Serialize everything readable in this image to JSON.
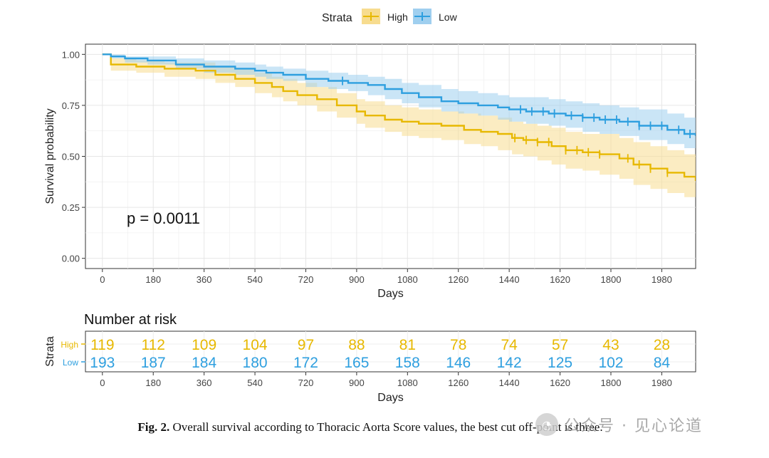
{
  "chart_data": {
    "type": "line",
    "subtype": "kaplan-meier",
    "legend": {
      "title": "Strata",
      "position": "top",
      "entries": [
        "High",
        "Low"
      ]
    },
    "colors": {
      "High": "#E7B800",
      "Low": "#2E9FDF",
      "High_band": "#F7DC8F",
      "Low_band": "#9FCFEF"
    },
    "xlabel": "Days",
    "ylabel": "Survival probability",
    "xlim": [
      -60,
      2100
    ],
    "ylim": [
      0,
      1
    ],
    "xticks": [
      0,
      180,
      360,
      540,
      720,
      900,
      1080,
      1260,
      1440,
      1620,
      1800,
      1980
    ],
    "yticks": [
      0,
      0.25,
      0.5,
      0.75,
      1.0
    ],
    "ytick_labels": [
      "0.00",
      "0.25",
      "0.50",
      "0.75",
      "1.00"
    ],
    "pvalue_label": "p = 0.0011",
    "series": [
      {
        "name": "High",
        "x": [
          0,
          30,
          120,
          220,
          330,
          400,
          470,
          540,
          600,
          640,
          690,
          760,
          830,
          900,
          930,
          1000,
          1060,
          1120,
          1200,
          1280,
          1340,
          1400,
          1450,
          1490,
          1540,
          1590,
          1640,
          1700,
          1760,
          1830,
          1880,
          1940,
          2000,
          2060,
          2100
        ],
        "y": [
          1.0,
          0.95,
          0.94,
          0.93,
          0.92,
          0.9,
          0.88,
          0.86,
          0.84,
          0.82,
          0.8,
          0.78,
          0.75,
          0.72,
          0.7,
          0.68,
          0.67,
          0.66,
          0.65,
          0.63,
          0.62,
          0.61,
          0.59,
          0.58,
          0.57,
          0.55,
          0.53,
          0.52,
          0.51,
          0.49,
          0.46,
          0.44,
          0.42,
          0.4,
          0.38
        ],
        "lower": [
          1.0,
          0.92,
          0.91,
          0.89,
          0.88,
          0.86,
          0.84,
          0.81,
          0.79,
          0.77,
          0.75,
          0.72,
          0.69,
          0.66,
          0.64,
          0.62,
          0.6,
          0.59,
          0.58,
          0.56,
          0.55,
          0.53,
          0.51,
          0.5,
          0.48,
          0.46,
          0.44,
          0.43,
          0.41,
          0.39,
          0.36,
          0.34,
          0.32,
          0.3,
          0.28
        ],
        "upper": [
          1.0,
          0.98,
          0.97,
          0.96,
          0.96,
          0.94,
          0.93,
          0.91,
          0.89,
          0.88,
          0.86,
          0.84,
          0.81,
          0.78,
          0.77,
          0.75,
          0.74,
          0.73,
          0.72,
          0.71,
          0.7,
          0.69,
          0.67,
          0.66,
          0.65,
          0.64,
          0.62,
          0.61,
          0.61,
          0.59,
          0.57,
          0.55,
          0.53,
          0.51,
          0.5
        ],
        "censor_x": [
          1460,
          1500,
          1540,
          1580,
          1640,
          1680,
          1720,
          1760,
          1860,
          1900,
          1940,
          2000
        ]
      },
      {
        "name": "Low",
        "x": [
          0,
          30,
          80,
          160,
          260,
          360,
          470,
          540,
          580,
          640,
          720,
          800,
          870,
          940,
          1000,
          1060,
          1120,
          1200,
          1260,
          1330,
          1400,
          1440,
          1500,
          1580,
          1640,
          1700,
          1760,
          1830,
          1900,
          2000,
          2060,
          2100
        ],
        "y": [
          1.0,
          0.99,
          0.98,
          0.97,
          0.95,
          0.94,
          0.93,
          0.92,
          0.91,
          0.9,
          0.88,
          0.87,
          0.86,
          0.85,
          0.83,
          0.81,
          0.79,
          0.77,
          0.76,
          0.75,
          0.74,
          0.73,
          0.72,
          0.71,
          0.7,
          0.69,
          0.68,
          0.67,
          0.65,
          0.63,
          0.61,
          0.6
        ],
        "lower": [
          1.0,
          0.98,
          0.96,
          0.95,
          0.93,
          0.91,
          0.9,
          0.89,
          0.88,
          0.87,
          0.84,
          0.83,
          0.82,
          0.8,
          0.78,
          0.76,
          0.74,
          0.72,
          0.71,
          0.7,
          0.68,
          0.67,
          0.66,
          0.65,
          0.64,
          0.62,
          0.61,
          0.6,
          0.58,
          0.56,
          0.54,
          0.53
        ],
        "upper": [
          1.0,
          1.0,
          0.99,
          0.99,
          0.98,
          0.97,
          0.96,
          0.95,
          0.94,
          0.93,
          0.92,
          0.91,
          0.9,
          0.89,
          0.88,
          0.86,
          0.85,
          0.83,
          0.82,
          0.81,
          0.8,
          0.79,
          0.79,
          0.78,
          0.77,
          0.76,
          0.75,
          0.74,
          0.73,
          0.71,
          0.69,
          0.68
        ],
        "censor_x": [
          850,
          1480,
          1520,
          1560,
          1600,
          1660,
          1700,
          1740,
          1780,
          1820,
          1860,
          1900,
          1940,
          1980,
          2040,
          2080
        ]
      }
    ],
    "risk_table": {
      "title": "Number at risk",
      "ylabel": "Strata",
      "xlabel": "Days",
      "rows": [
        {
          "name": "High",
          "values": [
            119,
            112,
            109,
            104,
            97,
            88,
            81,
            78,
            74,
            57,
            43,
            28
          ]
        },
        {
          "name": "Low",
          "values": [
            193,
            187,
            184,
            180,
            172,
            165,
            158,
            146,
            142,
            125,
            102,
            84
          ]
        }
      ]
    }
  },
  "caption": {
    "label": "Fig. 2.",
    "text": "Overall survival according to Thoracic Aorta Score values, the best cut off-point is three."
  },
  "watermark": {
    "icon": "wechat-icon",
    "text": "公众号 · 见心论道"
  }
}
